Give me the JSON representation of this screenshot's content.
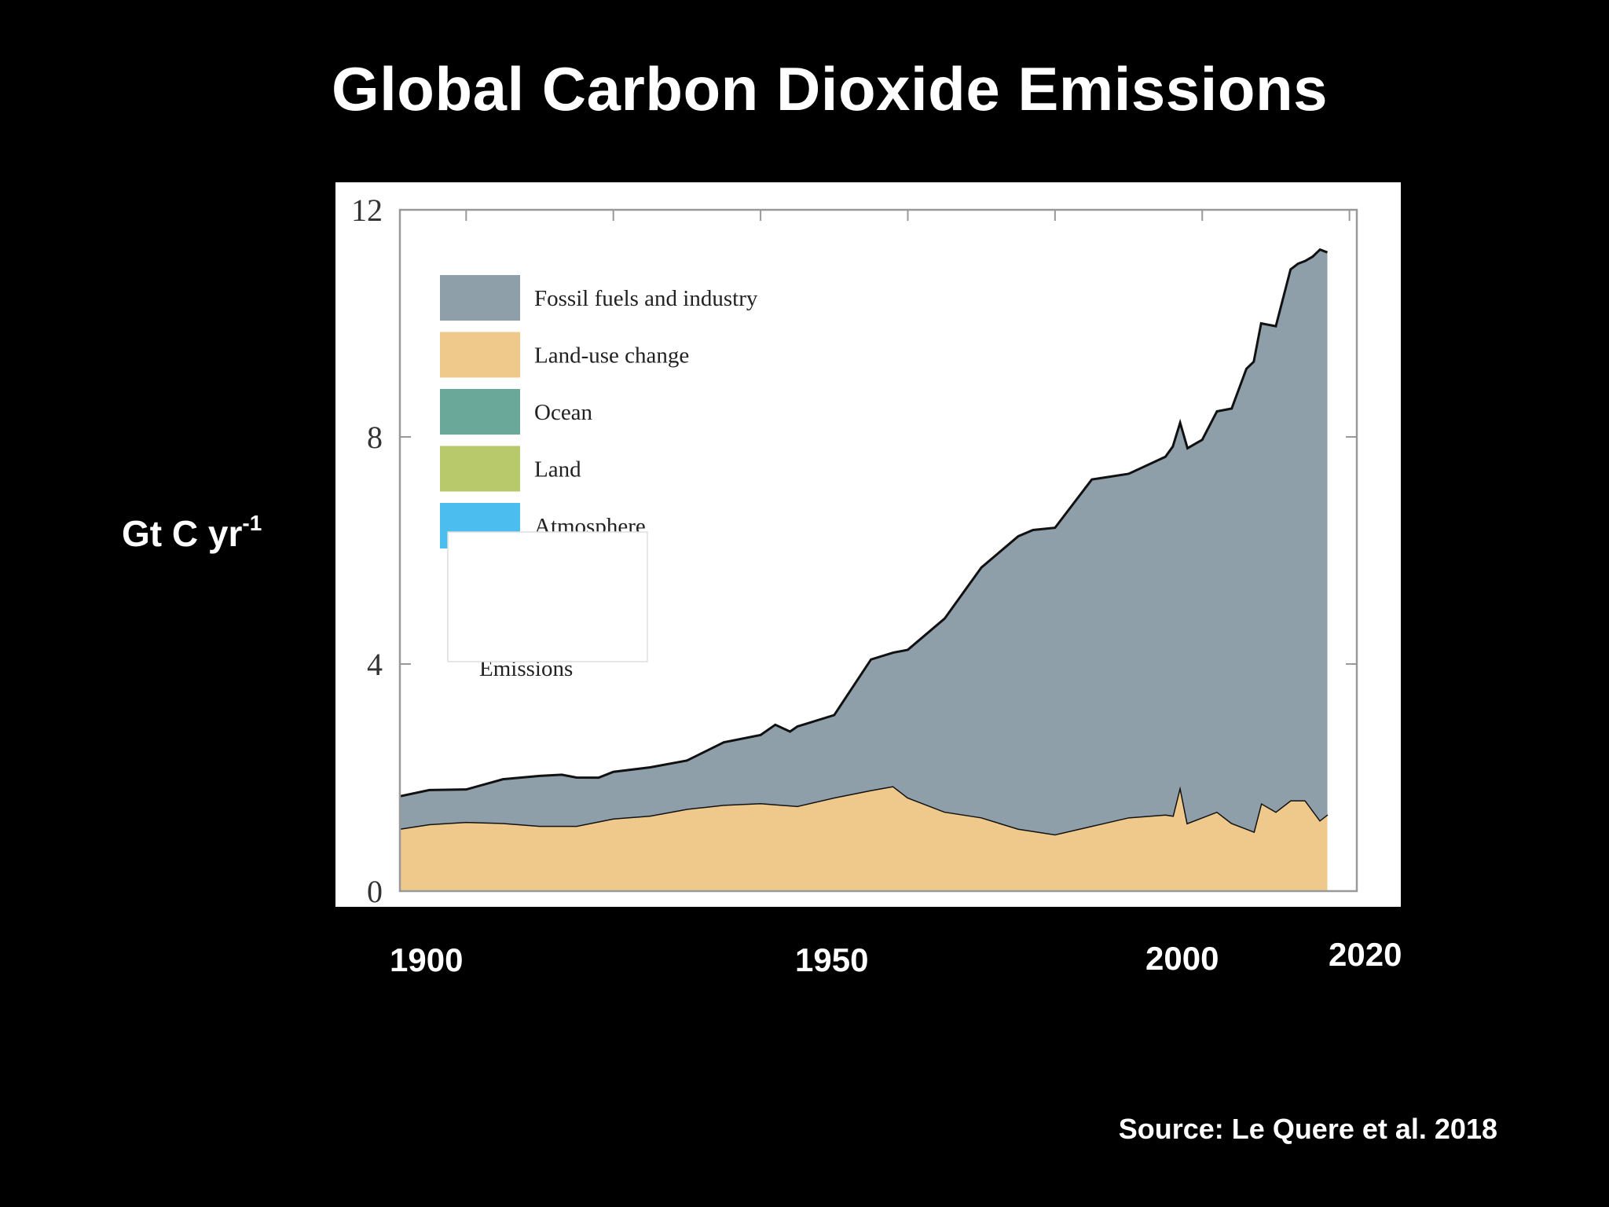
{
  "slide": {
    "title": "Global Carbon Dioxide Emissions",
    "y_unit_main": "Gt C yr",
    "y_unit_sup": "-1",
    "source": "Source: Le Quere et al. 2018",
    "year_labels": [
      "1900",
      "1950",
      "2000",
      "2020"
    ]
  },
  "chart_data": {
    "type": "area",
    "stacked": true,
    "xlim": [
      1891,
      2021
    ],
    "ylim": [
      0,
      12
    ],
    "y_ticks": [
      "0",
      "4",
      "8",
      "12"
    ],
    "legend_position": "top-left",
    "legend": [
      {
        "name": "Fossil fuels and industry",
        "color": "#8e9faa"
      },
      {
        "name": "Land-use change",
        "color": "#efc98c"
      },
      {
        "name": "Ocean",
        "color": "#6aa99a"
      },
      {
        "name": "Land",
        "color": "#b7c96a"
      },
      {
        "name": "Atmosphere",
        "color": "#4bbdee"
      }
    ],
    "occluded_label": "Emissions",
    "series": [
      {
        "name": "Land-use change",
        "color": "#efc98c",
        "x": [
          1891,
          1895,
          1900,
          1905,
          1910,
          1915,
          1920,
          1925,
          1930,
          1935,
          1940,
          1945,
          1950,
          1955,
          1958,
          1960,
          1965,
          1970,
          1975,
          1980,
          1985,
          1990,
          1995,
          1996,
          1997,
          1998,
          2000,
          2002,
          2004,
          2006,
          2007,
          2008,
          2010,
          2012,
          2014,
          2016,
          2017
        ],
        "values": [
          1.1,
          1.18,
          1.22,
          1.2,
          1.15,
          1.15,
          1.28,
          1.33,
          1.45,
          1.52,
          1.55,
          1.5,
          1.65,
          1.78,
          1.85,
          1.65,
          1.4,
          1.3,
          1.1,
          1.0,
          1.15,
          1.3,
          1.35,
          1.33,
          1.85,
          1.2,
          1.3,
          1.4,
          1.2,
          1.1,
          1.05,
          1.55,
          1.4,
          1.6,
          1.6,
          1.25,
          1.35
        ]
      },
      {
        "name": "Fossil fuels and industry",
        "color": "#8e9faa",
        "x": [
          1891,
          1895,
          1900,
          1905,
          1910,
          1913,
          1915,
          1918,
          1920,
          1925,
          1929,
          1930,
          1932,
          1935,
          1940,
          1942,
          1944,
          1945,
          1950,
          1955,
          1958,
          1960,
          1965,
          1970,
          1975,
          1977,
          1980,
          1985,
          1990,
          1995,
          1996,
          1997,
          1998,
          2000,
          2002,
          2004,
          2006,
          2008,
          2010,
          2012,
          2013,
          2014,
          2015,
          2016,
          2017
        ],
        "values": [
          0.57,
          0.6,
          0.57,
          0.77,
          0.88,
          0.9,
          0.85,
          0.77,
          0.82,
          0.85,
          0.85,
          0.85,
          0.95,
          1.1,
          1.2,
          1.4,
          1.3,
          1.4,
          1.45,
          2.3,
          2.35,
          2.6,
          3.4,
          4.4,
          5.15,
          5.3,
          5.4,
          6.1,
          6.05,
          6.3,
          6.5,
          6.4,
          6.6,
          6.65,
          7.05,
          7.3,
          8.1,
          8.45,
          8.55,
          9.35,
          9.45,
          9.5,
          9.75,
          10.05,
          9.9
        ]
      }
    ]
  }
}
